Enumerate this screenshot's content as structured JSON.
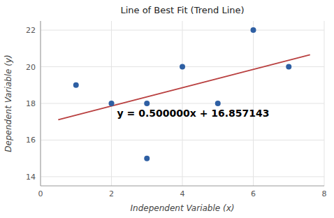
{
  "chart_data": {
    "type": "scatter",
    "title": "Line of Best Fit (Trend Line)",
    "xlabel": "Independent Variable (x)",
    "ylabel": "Dependent Variable (y)",
    "series": [
      {
        "type": "scatter",
        "color": "#2E5FA3",
        "x": [
          1,
          2,
          3,
          3,
          4,
          5,
          6,
          7
        ],
        "values": [
          19,
          18,
          18,
          15,
          20,
          18,
          22,
          20
        ]
      },
      {
        "type": "line",
        "color": "#B94040",
        "x": [
          0.5,
          7.6
        ],
        "values": [
          17.107143,
          20.657143
        ]
      }
    ],
    "annotations": [
      "y = 0.500000x + 16.857143"
    ],
    "xlim": [
      0,
      8
    ],
    "ylim": [
      13.5,
      22.5
    ],
    "xticks": [
      0,
      2,
      4,
      6,
      8
    ],
    "yticks": [
      14,
      16,
      18,
      20,
      22
    ],
    "grid": true
  }
}
